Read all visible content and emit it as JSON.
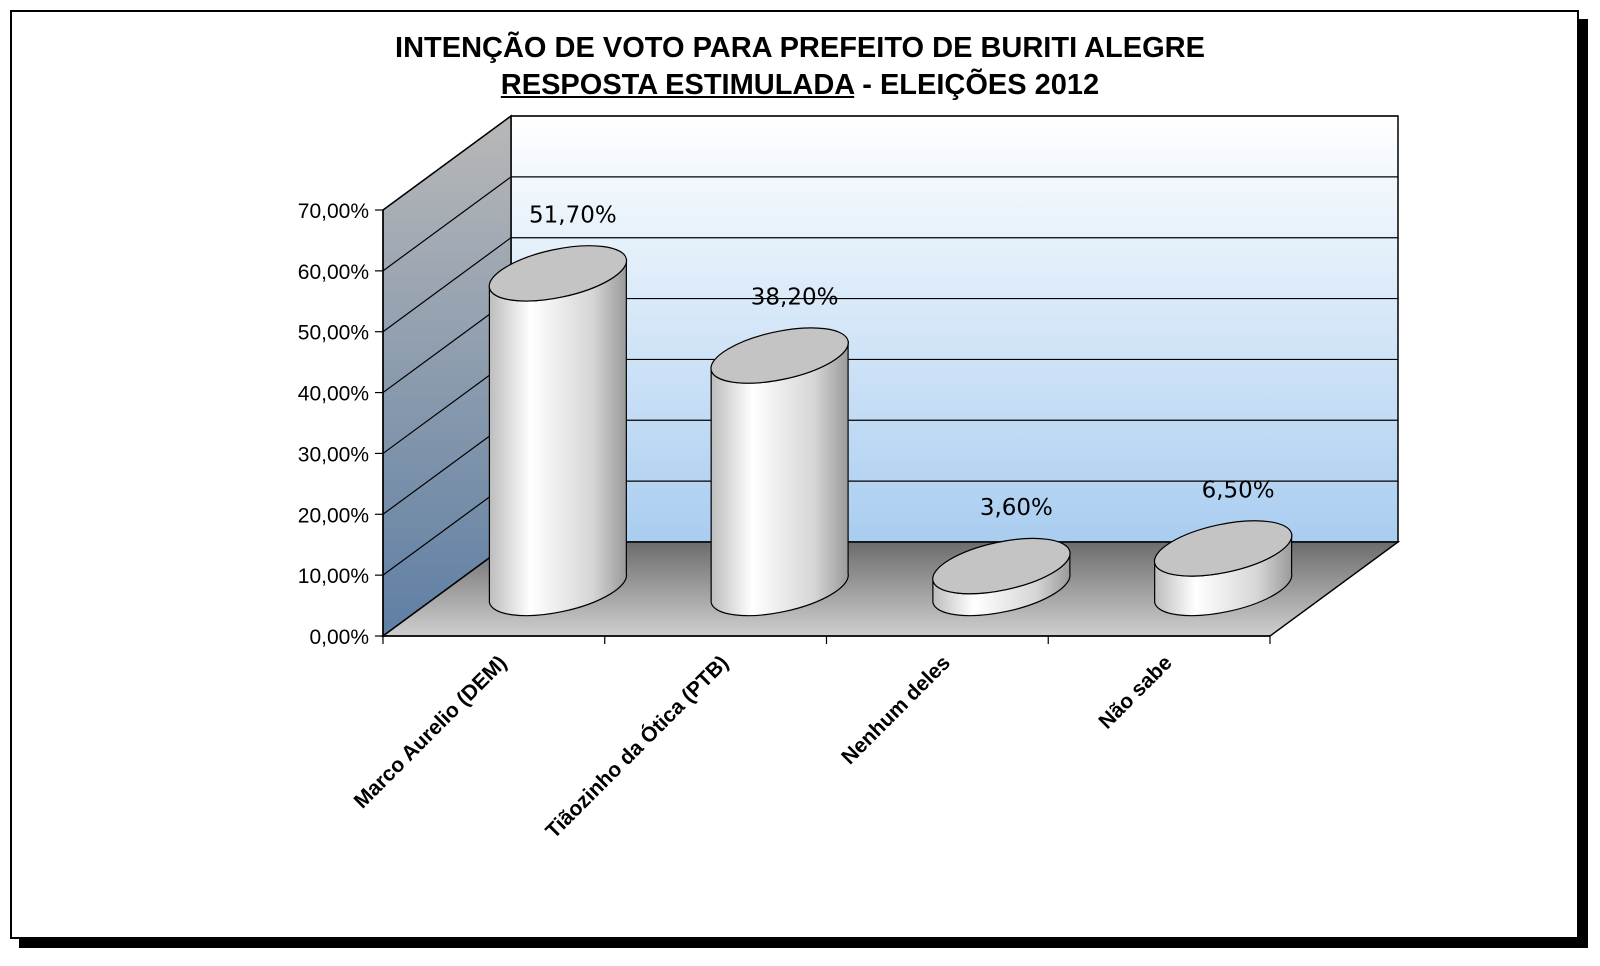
{
  "chart_data": {
    "type": "bar",
    "title": "INTENÇÃO DE VOTO PARA PREFEITO DE  BURITI ALEGRE",
    "subtitle_underlined": "RESPOSTA ESTIMULADA",
    "subtitle_rest": " - ELEIÇÕES 2012",
    "categories": [
      "Marco Aurelio (DEM)",
      "Tiãozinho da Ótica (PTB)",
      "Nenhum deles",
      "Não sabe"
    ],
    "values": [
      51.7,
      38.2,
      3.6,
      6.5
    ],
    "value_labels": [
      "51,70%",
      "38,20%",
      "3,60%",
      "6,50%"
    ],
    "ylim": [
      0,
      70
    ],
    "yticks": [
      0,
      10,
      20,
      30,
      40,
      50,
      60,
      70
    ],
    "ytick_labels": [
      "0,00%",
      "10,00%",
      "20,00%",
      "30,00%",
      "40,00%",
      "50,00%",
      "60,00%",
      "70,00%"
    ],
    "grid": true,
    "style": "3d-cylinder",
    "colors": {
      "bar": "#d8d8d8",
      "wall_top": "#ffffff",
      "wall_bottom": "#a9cdf0",
      "floor": "#8c8c8c",
      "side_wall": "#6f8fb0"
    }
  }
}
